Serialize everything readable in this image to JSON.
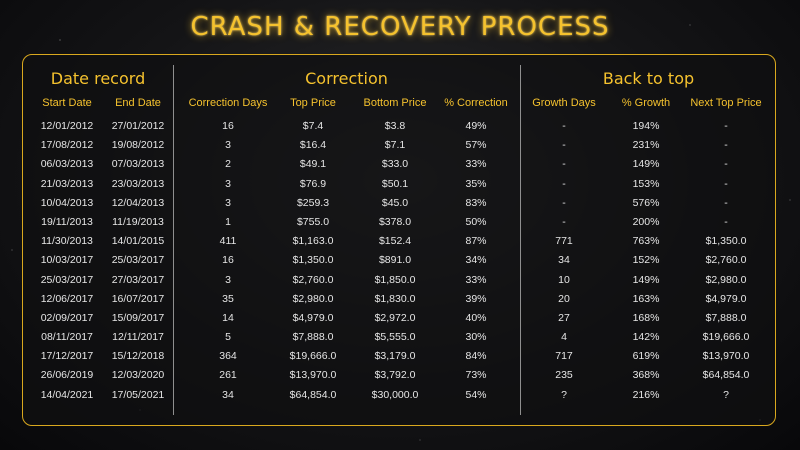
{
  "title": "CRASH & RECOVERY PROCESS",
  "sections": {
    "date_record": "Date record",
    "correction": "Correction",
    "back_to_top": "Back to top"
  },
  "columns": [
    "Start Date",
    "End Date",
    "Correction Days",
    "Top Price",
    "Bottom Price",
    "% Correction",
    "Growth Days",
    "% Growth",
    "Next Top Price"
  ],
  "rows": [
    [
      "12/01/2012",
      "27/01/2012",
      "16",
      "$7.4",
      "$3.8",
      "49%",
      "-",
      "194%",
      "-"
    ],
    [
      "17/08/2012",
      "19/08/2012",
      "3",
      "$16.4",
      "$7.1",
      "57%",
      "-",
      "231%",
      "-"
    ],
    [
      "06/03/2013",
      "07/03/2013",
      "2",
      "$49.1",
      "$33.0",
      "33%",
      "-",
      "149%",
      "-"
    ],
    [
      "21/03/2013",
      "23/03/2013",
      "3",
      "$76.9",
      "$50.1",
      "35%",
      "-",
      "153%",
      "-"
    ],
    [
      "10/04/2013",
      "12/04/2013",
      "3",
      "$259.3",
      "$45.0",
      "83%",
      "-",
      "576%",
      "-"
    ],
    [
      "19/11/2013",
      "11/19/2013",
      "1",
      "$755.0",
      "$378.0",
      "50%",
      "-",
      "200%",
      "-"
    ],
    [
      "11/30/2013",
      "14/01/2015",
      "411",
      "$1,163.0",
      "$152.4",
      "87%",
      "771",
      "763%",
      "$1,350.0"
    ],
    [
      "10/03/2017",
      "25/03/2017",
      "16",
      "$1,350.0",
      "$891.0",
      "34%",
      "34",
      "152%",
      "$2,760.0"
    ],
    [
      "25/03/2017",
      "27/03/2017",
      "3",
      "$2,760.0",
      "$1,850.0",
      "33%",
      "10",
      "149%",
      "$2,980.0"
    ],
    [
      "12/06/2017",
      "16/07/2017",
      "35",
      "$2,980.0",
      "$1,830.0",
      "39%",
      "20",
      "163%",
      "$4,979.0"
    ],
    [
      "02/09/2017",
      "15/09/2017",
      "14",
      "$4,979.0",
      "$2,972.0",
      "40%",
      "27",
      "168%",
      "$7,888.0"
    ],
    [
      "08/11/2017",
      "12/11/2017",
      "5",
      "$7,888.0",
      "$5,555.0",
      "30%",
      "4",
      "142%",
      "$19,666.0"
    ],
    [
      "17/12/2017",
      "15/12/2018",
      "364",
      "$19,666.0",
      "$3,179.0",
      "84%",
      "717",
      "619%",
      "$13,970.0"
    ],
    [
      "26/06/2019",
      "12/03/2020",
      "261",
      "$13,970.0",
      "$3,792.0",
      "73%",
      "235",
      "368%",
      "$64,854.0"
    ],
    [
      "14/04/2021",
      "17/05/2021",
      "34",
      "$64,854.0",
      "$30,000.0",
      "54%",
      "?",
      "216%",
      "?"
    ]
  ],
  "colors": {
    "accent": "#f5c22e",
    "border": "#d9a81e",
    "text": "#e6e6e6"
  }
}
